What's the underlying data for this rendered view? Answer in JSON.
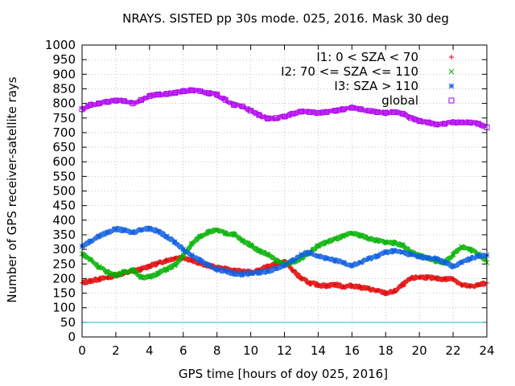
{
  "chart_data": {
    "type": "scatter",
    "title": "NRAYS. SISTED pp 30s mode. 025, 2016. Mask 30 deg",
    "xlabel": "GPS time [hours of doy 025, 2016]",
    "ylabel": "Number of GPS receiver-satellite rays",
    "xlim": [
      0,
      24
    ],
    "ylim": [
      0,
      1000
    ],
    "xticks": [
      0,
      2,
      4,
      6,
      8,
      10,
      12,
      14,
      16,
      18,
      20,
      22,
      24
    ],
    "yticks": [
      0,
      50,
      100,
      150,
      200,
      250,
      300,
      350,
      400,
      450,
      500,
      550,
      600,
      650,
      700,
      750,
      800,
      850,
      900,
      950,
      1000
    ],
    "legend_position": "top-right",
    "mask_line": {
      "y": 50,
      "color": "#20c0c0"
    },
    "series": [
      {
        "name": "I1: 0 < SZA < 70",
        "marker": "+",
        "color": "#e00000",
        "x": [
          0,
          0.5,
          1,
          1.5,
          2,
          2.5,
          3,
          3.5,
          4,
          4.5,
          5,
          5.5,
          6,
          6.5,
          7,
          7.5,
          8,
          8.5,
          9,
          9.5,
          10,
          10.5,
          11,
          11.5,
          12,
          12.5,
          13,
          13.5,
          14,
          14.5,
          15,
          15.5,
          16,
          16.5,
          17,
          17.5,
          18,
          18.5,
          19,
          19.5,
          20,
          20.5,
          21,
          21.5,
          22,
          22.5,
          23,
          23.5,
          24
        ],
        "y": [
          185,
          192,
          198,
          203,
          212,
          218,
          225,
          232,
          243,
          252,
          262,
          270,
          273,
          262,
          252,
          244,
          238,
          233,
          228,
          224,
          222,
          230,
          240,
          250,
          258,
          228,
          200,
          185,
          178,
          175,
          180,
          172,
          176,
          170,
          165,
          158,
          150,
          155,
          178,
          200,
          205,
          204,
          200,
          198,
          200,
          178,
          173,
          178,
          185
        ]
      },
      {
        "name": "I2: 70 <= SZA <= 110",
        "marker": "x",
        "color": "#00b000",
        "x": [
          0,
          0.5,
          1,
          1.5,
          2,
          2.5,
          3,
          3.5,
          4,
          4.5,
          5,
          5.5,
          6,
          6.5,
          7,
          7.5,
          8,
          8.5,
          9,
          9.5,
          10,
          10.5,
          11,
          11.5,
          12,
          12.5,
          13,
          13.5,
          14,
          14.5,
          15,
          15.5,
          16,
          16.5,
          17,
          17.5,
          18,
          18.5,
          19,
          19.5,
          20,
          20.5,
          21,
          21.5,
          22,
          22.5,
          23,
          23.5,
          24
        ],
        "y": [
          285,
          265,
          240,
          222,
          212,
          222,
          230,
          205,
          205,
          218,
          232,
          245,
          278,
          318,
          345,
          360,
          365,
          355,
          352,
          330,
          315,
          295,
          283,
          262,
          250,
          255,
          270,
          290,
          312,
          325,
          335,
          345,
          355,
          348,
          338,
          330,
          325,
          322,
          315,
          290,
          278,
          270,
          260,
          255,
          282,
          310,
          300,
          285,
          255
        ]
      },
      {
        "name": "I3: SZA > 110",
        "marker": "*",
        "color": "#1060e0",
        "x": [
          0,
          0.5,
          1,
          1.5,
          2,
          2.5,
          3,
          3.5,
          4,
          4.5,
          5,
          5.5,
          6,
          6.5,
          7,
          7.5,
          8,
          8.5,
          9,
          9.5,
          10,
          10.5,
          11,
          11.5,
          12,
          12.5,
          13,
          13.5,
          14,
          14.5,
          15,
          15.5,
          16,
          16.5,
          17,
          17.5,
          18,
          18.5,
          19,
          19.5,
          20,
          20.5,
          21,
          21.5,
          22,
          22.5,
          23,
          23.5,
          24
        ],
        "y": [
          310,
          328,
          345,
          358,
          370,
          365,
          358,
          368,
          372,
          362,
          345,
          325,
          300,
          280,
          262,
          245,
          232,
          225,
          218,
          215,
          218,
          220,
          225,
          235,
          245,
          262,
          282,
          290,
          278,
          268,
          262,
          255,
          245,
          255,
          268,
          278,
          290,
          295,
          290,
          282,
          275,
          270,
          268,
          255,
          242,
          255,
          268,
          278,
          280
        ]
      },
      {
        "name": "global",
        "marker": "square",
        "color": "#b000f0",
        "x": [
          0,
          0.5,
          1,
          1.5,
          2,
          2.5,
          3,
          3.5,
          4,
          4.5,
          5,
          5.5,
          6,
          6.5,
          7,
          7.5,
          8,
          8.5,
          9,
          9.5,
          10,
          10.5,
          11,
          11.5,
          12,
          12.5,
          13,
          13.5,
          14,
          14.5,
          15,
          15.5,
          16,
          16.5,
          17,
          17.5,
          18,
          18.5,
          19,
          19.5,
          20,
          20.5,
          21,
          21.5,
          22,
          22.5,
          23,
          23.5,
          24
        ],
        "y": [
          780,
          795,
          800,
          805,
          810,
          808,
          800,
          812,
          825,
          830,
          832,
          836,
          842,
          845,
          842,
          835,
          830,
          812,
          795,
          790,
          775,
          760,
          748,
          750,
          755,
          765,
          772,
          770,
          768,
          770,
          775,
          780,
          785,
          780,
          775,
          770,
          768,
          770,
          765,
          750,
          740,
          735,
          728,
          730,
          735,
          735,
          735,
          730,
          718
        ]
      }
    ]
  }
}
